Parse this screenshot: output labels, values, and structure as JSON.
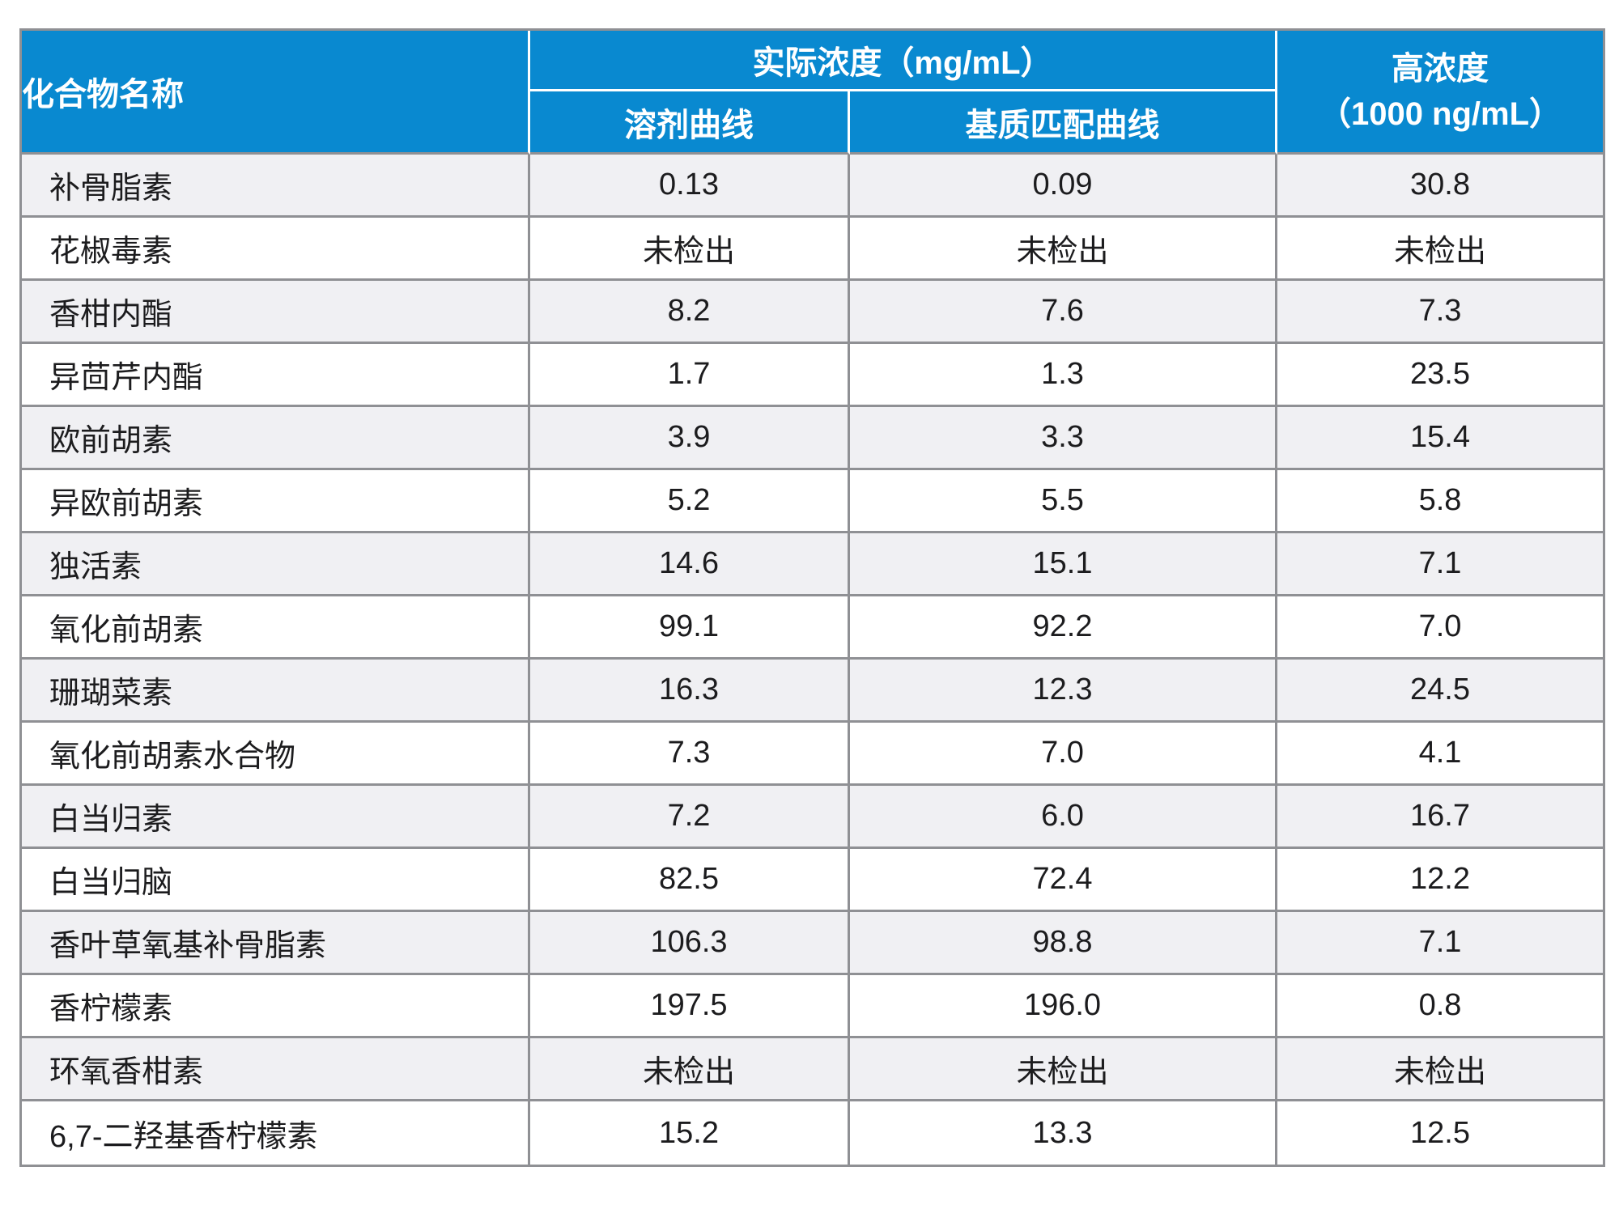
{
  "table": {
    "header": {
      "col_compound": "化合物名称",
      "group_actual": "实际浓度（mg/mL）",
      "sub_solvent": "溶剂曲线",
      "sub_matrix": "基质匹配曲线",
      "col_high_line1": "高浓度",
      "col_high_line2": "（1000 ng/mL）"
    },
    "rows": [
      {
        "name": "补骨脂素",
        "solvent": "0.13",
        "matrix": "0.09",
        "high": "30.8"
      },
      {
        "name": "花椒毒素",
        "solvent": "未检出",
        "matrix": "未检出",
        "high": "未检出"
      },
      {
        "name": "香柑内酯",
        "solvent": "8.2",
        "matrix": "7.6",
        "high": "7.3"
      },
      {
        "name": "异茴芹内酯",
        "solvent": "1.7",
        "matrix": "1.3",
        "high": "23.5"
      },
      {
        "name": "欧前胡素",
        "solvent": "3.9",
        "matrix": "3.3",
        "high": "15.4"
      },
      {
        "name": "异欧前胡素",
        "solvent": "5.2",
        "matrix": "5.5",
        "high": "5.8"
      },
      {
        "name": "独活素",
        "solvent": "14.6",
        "matrix": "15.1",
        "high": "7.1"
      },
      {
        "name": "氧化前胡素",
        "solvent": "99.1",
        "matrix": "92.2",
        "high": "7.0"
      },
      {
        "name": "珊瑚菜素",
        "solvent": "16.3",
        "matrix": "12.3",
        "high": "24.5"
      },
      {
        "name": "氧化前胡素水合物",
        "solvent": "7.3",
        "matrix": "7.0",
        "high": "4.1"
      },
      {
        "name": "白当归素",
        "solvent": "7.2",
        "matrix": "6.0",
        "high": "16.7"
      },
      {
        "name": "白当归脑",
        "solvent": "82.5",
        "matrix": "72.4",
        "high": "12.2"
      },
      {
        "name": "香叶草氧基补骨脂素",
        "solvent": "106.3",
        "matrix": "98.8",
        "high": "7.1"
      },
      {
        "name": "香柠檬素",
        "solvent": "197.5",
        "matrix": "196.0",
        "high": "0.8"
      },
      {
        "name": "环氧香柑素",
        "solvent": "未检出",
        "matrix": "未检出",
        "high": "未检出"
      },
      {
        "name": "6,7-二羟基香柠檬素",
        "solvent": "15.2",
        "matrix": "13.3",
        "high": "12.5"
      }
    ],
    "colors": {
      "header_bg": "#0989d0",
      "header_text": "#ffffff",
      "row_odd_bg": "#f0f0f3",
      "row_even_bg": "#ffffff",
      "border": "#8f9094",
      "body_text": "#1c1c1e"
    }
  }
}
